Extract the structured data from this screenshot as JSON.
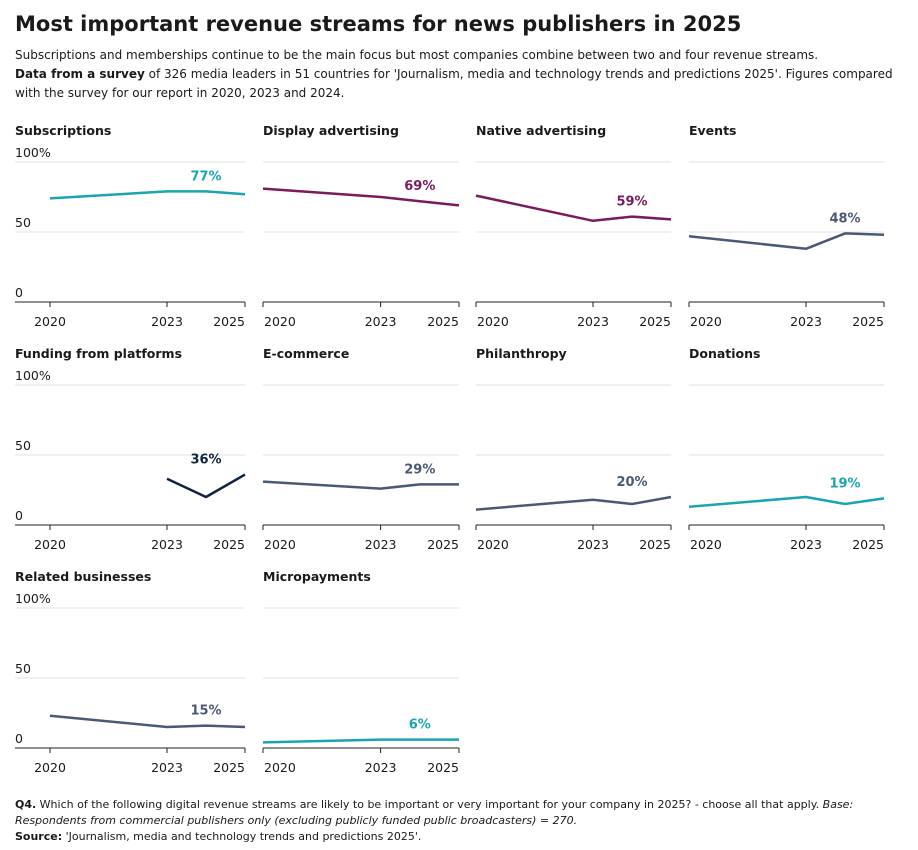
{
  "header": {
    "title": "Most important revenue streams for news publishers in 2025",
    "subtitle": "Subscriptions and memberships continue to be the main focus but most companies combine between two and four revenue streams.",
    "note_bold": "Data from a survey",
    "note": " of 326 media leaders in 51 countries for 'Journalism, media and technology trends and predictions 2025'. Figures compared with the survey for our report in 2020, 2023 and 2024."
  },
  "footer": {
    "question_bold": "Q4.",
    "question": " Which of the following digital revenue streams are likely to be important or very important for your company in 2025? - choose all that apply. ",
    "base": "Base: Respondents from commercial publishers only (excluding publicly funded public broadcasters) = 270.",
    "source_bold": "Source:",
    "source": " 'Journalism, media and technology trends and predictions 2025'."
  },
  "chart_data": [
    {
      "type": "line",
      "title": "Subscriptions",
      "x": [
        2020,
        2023,
        2024,
        2025
      ],
      "values": [
        74,
        79,
        79,
        77
      ],
      "value_labels": [
        null,
        null,
        null,
        "77%"
      ],
      "color": "#1aa5b3",
      "ylim": [
        0,
        100
      ],
      "yticks": [
        0,
        50,
        {
          "value": 100,
          "label": "100%"
        }
      ],
      "ytick_labels": true,
      "xlim": [
        2020,
        2025
      ],
      "xticks": [
        2020,
        2023,
        2025
      ],
      "grid": true
    },
    {
      "type": "line",
      "title": "Display advertising",
      "x": [
        2020,
        2023,
        2024,
        2025
      ],
      "values": [
        81,
        75,
        72,
        69
      ],
      "value_labels": [
        null,
        null,
        null,
        "69%"
      ],
      "color": "#7a1b5c",
      "ylim": [
        0,
        100
      ],
      "yticks": [
        0,
        50,
        100
      ],
      "ytick_labels": false,
      "xlim": [
        2020,
        2025
      ],
      "xticks": [
        2020,
        2023,
        2025
      ],
      "grid": true
    },
    {
      "type": "line",
      "title": "Native advertising",
      "x": [
        2020,
        2023,
        2024,
        2025
      ],
      "values": [
        76,
        58,
        61,
        59
      ],
      "value_labels": [
        null,
        null,
        null,
        "59%"
      ],
      "color": "#7a1b5c",
      "ylim": [
        0,
        100
      ],
      "yticks": [
        0,
        50,
        100
      ],
      "ytick_labels": false,
      "xlim": [
        2020,
        2025
      ],
      "xticks": [
        2020,
        2023,
        2025
      ],
      "grid": true
    },
    {
      "type": "line",
      "title": "Events",
      "x": [
        2020,
        2023,
        2024,
        2025
      ],
      "values": [
        47,
        38,
        49,
        48
      ],
      "value_labels": [
        null,
        null,
        null,
        "48%"
      ],
      "color": "#4a5a75",
      "ylim": [
        0,
        100
      ],
      "yticks": [
        0,
        50,
        100
      ],
      "ytick_labels": false,
      "xlim": [
        2020,
        2025
      ],
      "xticks": [
        2020,
        2023,
        2025
      ],
      "grid": true
    },
    {
      "type": "line",
      "title": "Funding from platforms",
      "x": [
        2020,
        2023,
        2024,
        2025
      ],
      "values": [
        null,
        33,
        20,
        36
      ],
      "value_labels": [
        null,
        null,
        null,
        "36%"
      ],
      "color": "#0f2340",
      "ylim": [
        0,
        100
      ],
      "yticks": [
        0,
        50,
        {
          "value": 100,
          "label": "100%"
        }
      ],
      "ytick_labels": true,
      "xlim": [
        2020,
        2025
      ],
      "xticks": [
        2020,
        2023,
        2025
      ],
      "grid": true
    },
    {
      "type": "line",
      "title": "E-commerce",
      "x": [
        2020,
        2023,
        2024,
        2025
      ],
      "values": [
        31,
        26,
        29,
        29
      ],
      "value_labels": [
        null,
        null,
        null,
        "29%"
      ],
      "color": "#4a5a75",
      "ylim": [
        0,
        100
      ],
      "yticks": [
        0,
        50,
        100
      ],
      "ytick_labels": false,
      "xlim": [
        2020,
        2025
      ],
      "xticks": [
        2020,
        2023,
        2025
      ],
      "grid": true
    },
    {
      "type": "line",
      "title": "Philanthropy",
      "x": [
        2020,
        2023,
        2024,
        2025
      ],
      "values": [
        11,
        18,
        15,
        20
      ],
      "value_labels": [
        null,
        null,
        null,
        "20%"
      ],
      "color": "#4a5a75",
      "ylim": [
        0,
        100
      ],
      "yticks": [
        0,
        50,
        100
      ],
      "ytick_labels": false,
      "xlim": [
        2020,
        2025
      ],
      "xticks": [
        2020,
        2023,
        2025
      ],
      "grid": true
    },
    {
      "type": "line",
      "title": "Donations",
      "x": [
        2020,
        2023,
        2024,
        2025
      ],
      "values": [
        13,
        20,
        15,
        19
      ],
      "value_labels": [
        null,
        null,
        null,
        "19%"
      ],
      "color": "#1aa5b3",
      "ylim": [
        0,
        100
      ],
      "yticks": [
        0,
        50,
        100
      ],
      "ytick_labels": false,
      "xlim": [
        2020,
        2025
      ],
      "xticks": [
        2020,
        2023,
        2025
      ],
      "grid": true
    },
    {
      "type": "line",
      "title": "Related businesses",
      "x": [
        2020,
        2023,
        2024,
        2025
      ],
      "values": [
        23,
        15,
        16,
        15
      ],
      "value_labels": [
        null,
        null,
        null,
        "15%"
      ],
      "color": "#4a5a75",
      "ylim": [
        0,
        100
      ],
      "yticks": [
        0,
        50,
        {
          "value": 100,
          "label": "100%"
        }
      ],
      "ytick_labels": true,
      "xlim": [
        2020,
        2025
      ],
      "xticks": [
        2020,
        2023,
        2025
      ],
      "grid": true
    },
    {
      "type": "line",
      "title": "Micropayments",
      "x": [
        2020,
        2023,
        2024,
        2025
      ],
      "values": [
        4,
        6,
        6,
        6
      ],
      "value_labels": [
        null,
        null,
        null,
        "6%"
      ],
      "color": "#1aa5b3",
      "ylim": [
        0,
        100
      ],
      "yticks": [
        0,
        50,
        100
      ],
      "ytick_labels": false,
      "xlim": [
        2020,
        2025
      ],
      "xticks": [
        2020,
        2023,
        2025
      ],
      "grid": true
    }
  ]
}
